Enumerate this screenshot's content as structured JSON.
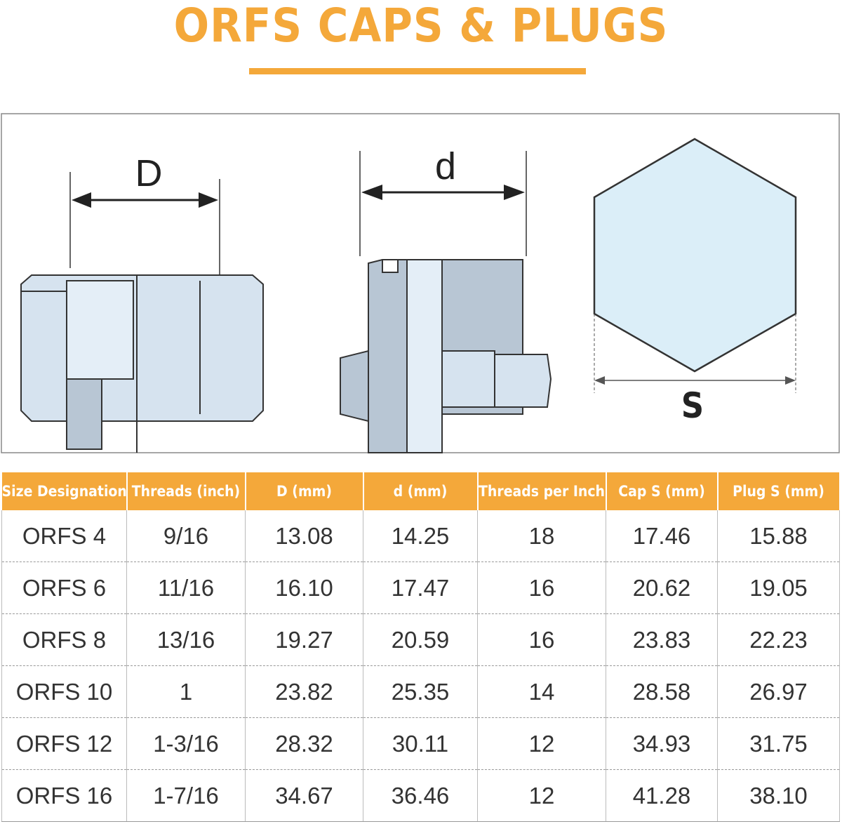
{
  "header": {
    "title": "ORFS CAPS & PLUGS"
  },
  "diagram": {
    "labels": [
      "D",
      "d",
      "S"
    ]
  },
  "table": {
    "columns": [
      "Size Designation",
      "Threads (inch)",
      "D (mm)",
      "d (mm)",
      "Threads per Inch",
      "Cap S (mm)",
      "Plug S (mm)"
    ],
    "rows": [
      [
        "ORFS 4",
        "9/16",
        "13.08",
        "14.25",
        "18",
        "17.46",
        "15.88"
      ],
      [
        "ORFS 6",
        "11/16",
        "16.10",
        "17.47",
        "16",
        "20.62",
        "19.05"
      ],
      [
        "ORFS 8",
        "13/16",
        "19.27",
        "20.59",
        "16",
        "23.83",
        "22.23"
      ],
      [
        "ORFS 10",
        "1",
        "23.82",
        "25.35",
        "14",
        "28.58",
        "26.97"
      ],
      [
        "ORFS 12",
        "1-3/16",
        "28.32",
        "30.11",
        "12",
        "34.93",
        "31.75"
      ],
      [
        "ORFS 16",
        "1-7/16",
        "34.67",
        "36.46",
        "12",
        "41.28",
        "38.10"
      ]
    ]
  }
}
